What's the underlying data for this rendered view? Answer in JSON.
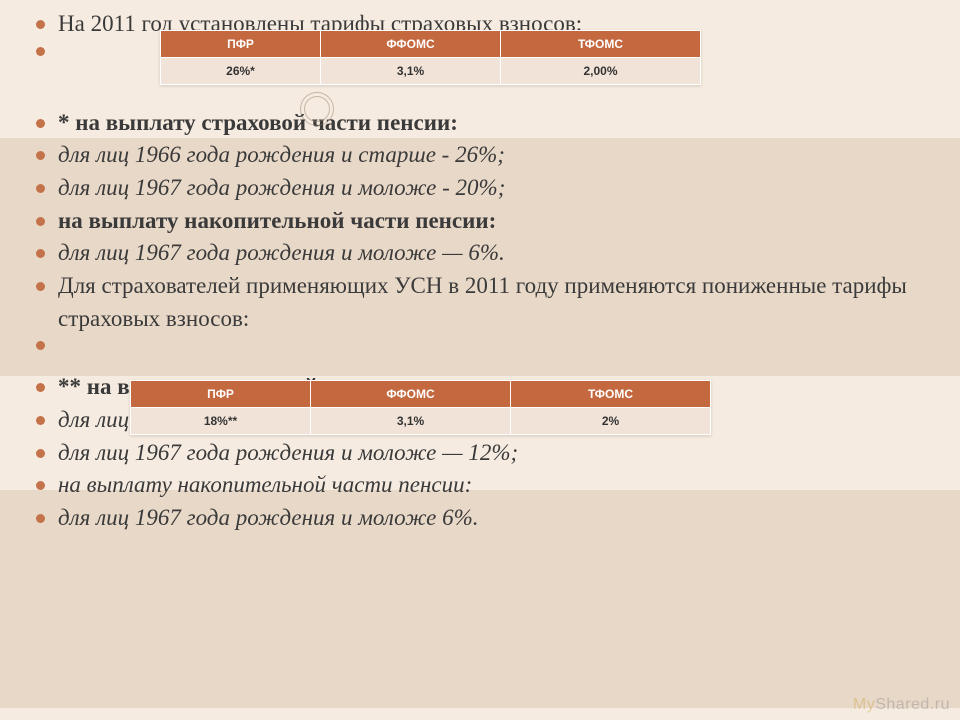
{
  "bullets": [
    {
      "text": "На 2011 год установлены тарифы страховых взносов:",
      "bold": false,
      "italic": false
    },
    {
      "text": "",
      "bold": false,
      "italic": false,
      "empty": true
    },
    {
      "text": "* на выплату страховой части пенсии:",
      "bold": true,
      "italic": false
    },
    {
      "text": "для лиц 1966 года рождения и старше - 26%;",
      "bold": false,
      "italic": true
    },
    {
      "text": "для лиц 1967 года рождения и моложе - 20%;",
      "bold": false,
      "italic": true
    },
    {
      "text": " на выплату накопительной части пенсии:",
      "bold": true,
      "italic": false
    },
    {
      "text": "для лиц 1967 года рождения и моложе — 6%.",
      "bold": false,
      "italic": true
    },
    {
      "text": "Для страхователей применяющих УСН в 2011 году применяются пониженные тарифы страховых взносов:",
      "bold": false,
      "italic": false,
      "wrap": true
    },
    {
      "text": "",
      "bold": false,
      "italic": false,
      "empty": true
    },
    {
      "text": "** на выплату страховой части пенсии:",
      "bold": true,
      "italic": false
    },
    {
      "text": "для лиц 1966 года рождения и старше - 18%;",
      "bold": false,
      "italic": true
    },
    {
      "text": "для лиц 1967 года рождения и моложе — 12%;",
      "bold": false,
      "italic": true
    },
    {
      "text": "на выплату накопительной части пенсии:",
      "bold": false,
      "italic": true
    },
    {
      "text": "для лиц 1967 года рождения и моложе 6%.",
      "bold": false,
      "italic": true
    }
  ],
  "table1": {
    "headers": [
      "ПФР",
      "ФФОМС",
      "ТФОМС"
    ],
    "row": [
      "26%*",
      "3,1%",
      "2,00%"
    ],
    "header_bg": "#c4683f",
    "row_bg": "#f2e3d8"
  },
  "table2": {
    "headers": [
      "ПФР",
      "ФФОМС",
      "ТФОМС"
    ],
    "row": [
      "18%**",
      "3,1%",
      "2%"
    ],
    "header_bg": "#c4683f",
    "row_bg": "#f2e3d8"
  },
  "watermark": {
    "prefix": "My",
    "suffix": "Shared.ru"
  },
  "colors": {
    "slide_bg": "#f5ebe0",
    "band_bg": "#e8d8c8",
    "bullet": "#c4724a",
    "text": "#3a3a3a"
  }
}
